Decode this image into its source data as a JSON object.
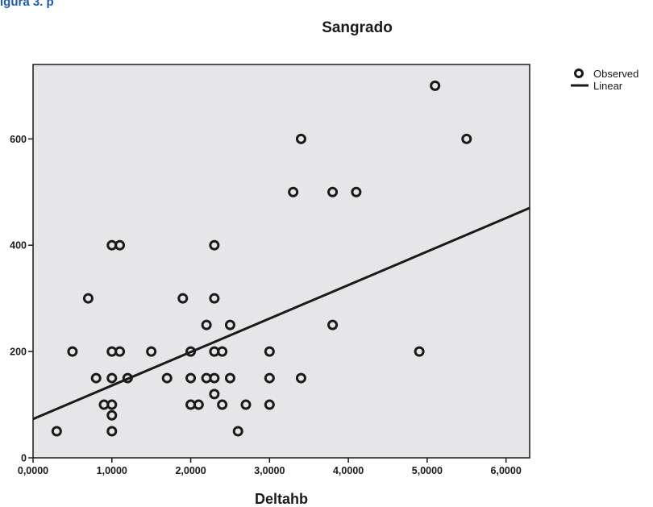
{
  "header": {
    "text": "igura 3. p"
  },
  "chart_data": {
    "type": "scatter",
    "title": "Sangrado",
    "xlabel": "Deltahb",
    "ylabel": "",
    "xlim": [
      0,
      6.3
    ],
    "ylim": [
      0,
      740
    ],
    "x_ticks": [
      {
        "value": 0,
        "label": "0,0000"
      },
      {
        "value": 1,
        "label": "1,0000"
      },
      {
        "value": 2,
        "label": "2,0000"
      },
      {
        "value": 3,
        "label": "3,0000"
      },
      {
        "value": 4,
        "label": "4,0000"
      },
      {
        "value": 5,
        "label": "5,0000"
      },
      {
        "value": 6,
        "label": "6,0000"
      }
    ],
    "y_ticks": [
      {
        "value": 0,
        "label": "0"
      },
      {
        "value": 200,
        "label": "200"
      },
      {
        "value": 400,
        "label": "400"
      },
      {
        "value": 600,
        "label": "600"
      }
    ],
    "grid": false,
    "legend": {
      "placement": "top-right",
      "entries": [
        "Observed",
        "Linear"
      ]
    },
    "series": [
      {
        "name": "Observed",
        "marker": "open-circle",
        "points": [
          [
            0.3,
            50
          ],
          [
            0.5,
            200
          ],
          [
            0.7,
            300
          ],
          [
            0.8,
            150
          ],
          [
            0.9,
            100
          ],
          [
            1.0,
            400
          ],
          [
            1.1,
            400
          ],
          [
            1.0,
            200
          ],
          [
            1.1,
            200
          ],
          [
            1.0,
            150
          ],
          [
            1.0,
            100
          ],
          [
            1.0,
            80
          ],
          [
            1.0,
            50
          ],
          [
            1.2,
            150
          ],
          [
            1.5,
            200
          ],
          [
            1.7,
            150
          ],
          [
            1.9,
            300
          ],
          [
            2.0,
            200
          ],
          [
            2.0,
            150
          ],
          [
            2.0,
            100
          ],
          [
            2.1,
            100
          ],
          [
            2.2,
            250
          ],
          [
            2.2,
            150
          ],
          [
            2.3,
            400
          ],
          [
            2.3,
            300
          ],
          [
            2.3,
            200
          ],
          [
            2.3,
            150
          ],
          [
            2.3,
            120
          ],
          [
            2.4,
            200
          ],
          [
            2.4,
            100
          ],
          [
            2.5,
            250
          ],
          [
            2.5,
            150
          ],
          [
            2.6,
            50
          ],
          [
            2.7,
            100
          ],
          [
            3.0,
            200
          ],
          [
            3.0,
            150
          ],
          [
            3.0,
            100
          ],
          [
            3.3,
            500
          ],
          [
            3.4,
            600
          ],
          [
            3.4,
            150
          ],
          [
            3.8,
            500
          ],
          [
            3.8,
            250
          ],
          [
            4.1,
            500
          ],
          [
            4.9,
            200
          ],
          [
            5.1,
            700
          ],
          [
            5.5,
            600
          ]
        ]
      },
      {
        "name": "Linear",
        "type": "line",
        "points": [
          [
            0,
            73
          ],
          [
            6.3,
            470
          ]
        ]
      }
    ],
    "colors": {
      "marker": "#1a1a1a",
      "line": "#1a1a1a",
      "plot_bg": "#e6e6e9"
    }
  }
}
